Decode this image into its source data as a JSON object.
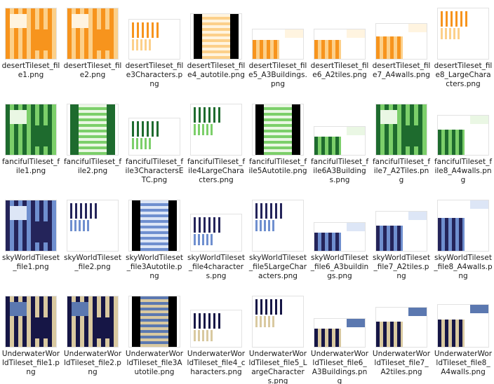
{
  "files": [
    [
      "desertTileset_file1.png",
      "desertTileset_file2.png",
      "desertTileset_file3Characters.png",
      "desertTileset_file4_autotile.png",
      "desertTileset_file5_A3Buildings.png",
      "desertTileset_file6_A2tiles.png",
      "desertTileset_file7_A4walls.png",
      "desertTileset_file8_LargeCharacters.png"
    ],
    [
      "fancifulTileset_file1.png",
      "fancifulTileset_file2.png",
      "fancifulTileset_file3CharactersETC.png",
      "fancifulTileset_file4LargeCharacters.png",
      "fancifulTileset_file5Autotile.png",
      "fancifulTileset_file6A3Buildings.png",
      "fancifulTileset_file7_A2Tiles.png",
      "fancifulTileset_file8_A4walls.png"
    ],
    [
      "skyWorldTileset_file1.png",
      "skyWorldTileset_file2.png",
      "skyWorldTileset_file3Autotile.png",
      "skyWorldTileset_file4characters.png",
      "skyWorldTileset_file5LargeCharacters.png",
      "skyWorldTileset_file6_A3buildings.png",
      "skyWorldTileset_file7_A2tiles.png",
      "skyWorldTileset_file8_A4walls.png"
    ],
    [
      "UnderwaterWorldTileset_file1.png",
      "UnderwaterWorldTileset_file2.png",
      "UnderwaterWorldTileset_file3Autotile.png",
      "UnderwaterWorldTileset_file4_characters.png",
      "UnderwaterWorldTileset_file5_LargeCharacters.png",
      "UnderwaterWorldTileset_file6_A3Buildings.png",
      "UnderwaterWorldTileset_file7_A2tiles.png",
      "UnderwaterWorldTileset_file8_A4walls.png"
    ]
  ]
}
